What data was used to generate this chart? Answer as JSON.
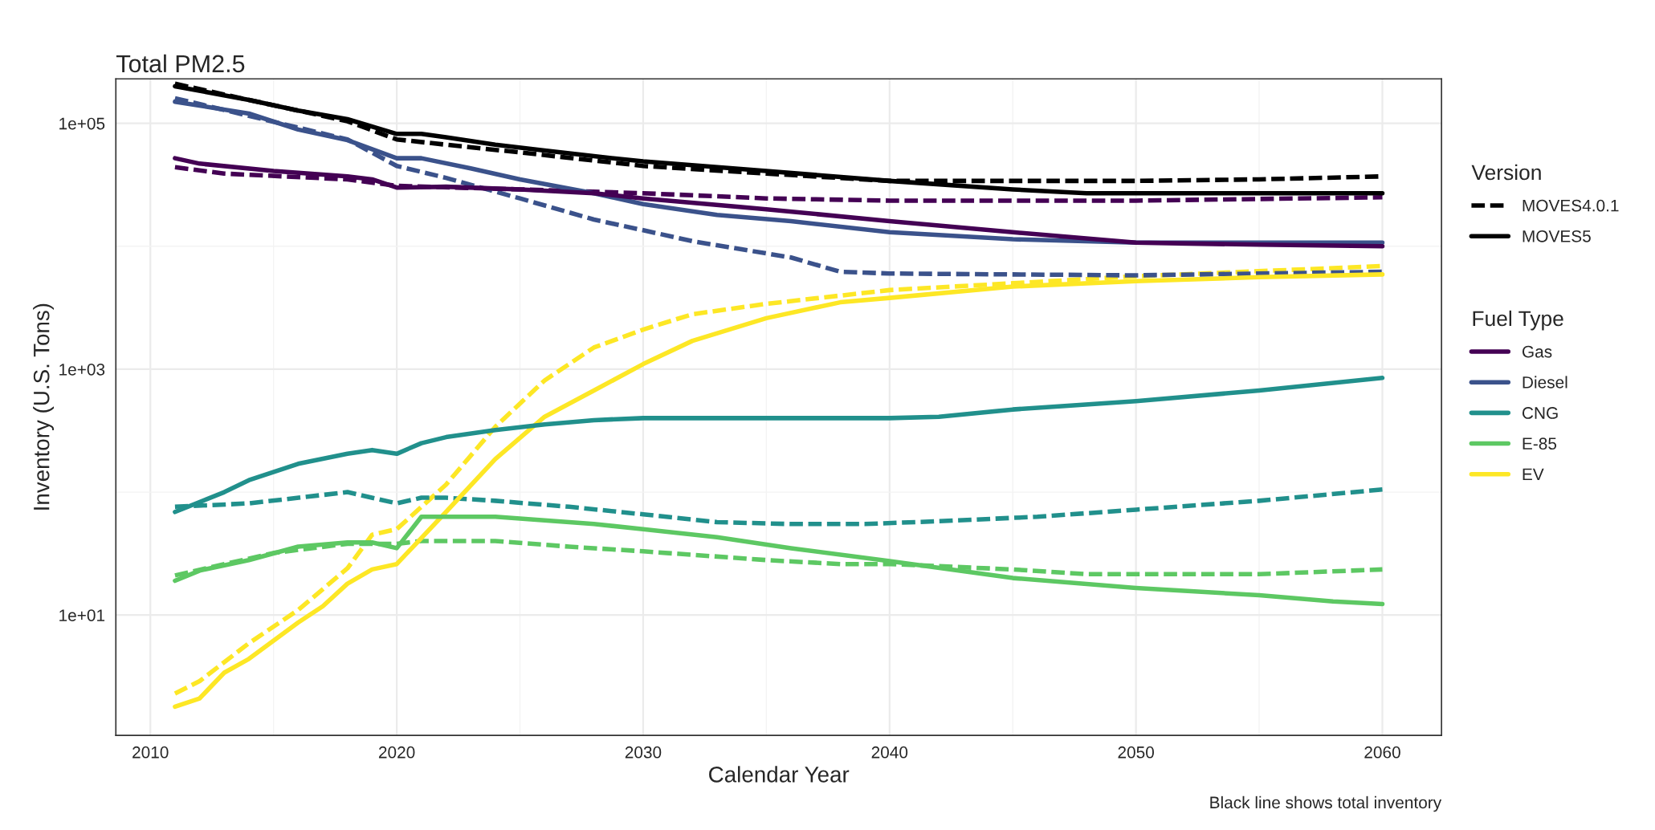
{
  "chart_data": {
    "type": "line",
    "title": "Total PM2.5",
    "xlabel": "Calendar Year",
    "ylabel": "Inventory (U.S. Tons)",
    "legend_title": [
      "Version",
      "Fuel Type"
    ],
    "log": "y",
    "grid": true,
    "legend": "right",
    "xlim": [
      2008.6,
      2062.4
    ],
    "ylim": [
      1.05,
      230000
    ],
    "xticks": [
      2010,
      2020,
      2030,
      2040,
      2050,
      2060
    ],
    "yticks": [
      {
        "value": 10,
        "label": "1e+01"
      },
      {
        "value": 1000,
        "label": "1e+03"
      },
      {
        "value": 100000,
        "label": "1e+05"
      }
    ],
    "annotations": [
      "Black line shows total inventory"
    ],
    "series": [
      {
        "name": "MOVES4.0.1",
        "color": "#000000",
        "line_style": "dashed",
        "x": [
          2011,
          2014,
          2018,
          2020,
          2022,
          2025,
          2030,
          2035,
          2040,
          2045,
          2050,
          2055,
          2060
        ],
        "values": [
          210000,
          155000,
          104000,
          74000,
          67000,
          58000,
          45000,
          39000,
          34000,
          34000,
          34000,
          35000,
          37000
        ]
      },
      {
        "name": "MOVES5",
        "color": "#000000",
        "line_style": "solid",
        "x": [
          2011,
          2014,
          2016,
          2018,
          2020,
          2021,
          2022,
          2024,
          2026,
          2028,
          2030,
          2035,
          2040,
          2045,
          2048,
          2060
        ],
        "values": [
          200000,
          155000,
          127000,
          108000,
          82000,
          82000,
          77000,
          67000,
          60000,
          54000,
          49000,
          41000,
          34000,
          29000,
          27000,
          27000
        ]
      },
      {
        "name": "Gas",
        "color": "#440154",
        "line_style": "solid",
        "x": [
          2011,
          2012,
          2015,
          2018,
          2019,
          2020,
          2022,
          2025,
          2028,
          2030,
          2035,
          2040,
          2045,
          2050,
          2055,
          2060
        ],
        "values": [
          52000,
          47000,
          41000,
          37000,
          35000,
          30000,
          30500,
          29000,
          27000,
          24500,
          20000,
          16000,
          13000,
          10700,
          10300,
          10000
        ]
      },
      {
        "name": "Diesel",
        "color": "#3b528b",
        "line_style": "solid",
        "x": [
          2011,
          2014,
          2016,
          2018,
          2020,
          2021,
          2023,
          2025,
          2028,
          2030,
          2033,
          2036,
          2040,
          2045,
          2050,
          2060
        ],
        "values": [
          150000,
          120000,
          89000,
          73000,
          52000,
          52000,
          43000,
          35000,
          27000,
          22000,
          18000,
          16000,
          13000,
          11400,
          10700,
          10700
        ]
      },
      {
        "name": "CNG",
        "color": "#21908c",
        "line_style": "solid",
        "x": [
          2011,
          2013,
          2014,
          2016,
          2018,
          2019,
          2020,
          2021,
          2022,
          2024,
          2026,
          2028,
          2030,
          2035,
          2040,
          2042,
          2045,
          2050,
          2055,
          2060
        ],
        "values": [
          69,
          100,
          125,
          170,
          205,
          220,
          205,
          250,
          280,
          320,
          355,
          385,
          400,
          400,
          400,
          410,
          470,
          550,
          670,
          850
        ]
      },
      {
        "name": "E-85",
        "color": "#5dc863",
        "line_style": "solid",
        "x": [
          2011,
          2012,
          2014,
          2016,
          2018,
          2019,
          2020,
          2021,
          2024,
          2028,
          2030,
          2033,
          2036,
          2040,
          2045,
          2050,
          2055,
          2058,
          2060
        ],
        "values": [
          19,
          23,
          28,
          36,
          39,
          39,
          35,
          63,
          63,
          55,
          50,
          43,
          35,
          27.5,
          20,
          16.6,
          14.5,
          12.9,
          12.3
        ]
      },
      {
        "name": "EV",
        "color": "#fde725",
        "line_style": "solid",
        "x": [
          2011,
          2012,
          2013,
          2014,
          2016,
          2017,
          2018,
          2019,
          2020,
          2022,
          2024,
          2026,
          2028,
          2030,
          2032,
          2035,
          2038,
          2040,
          2045,
          2050,
          2055,
          2060
        ],
        "values": [
          1.8,
          2.1,
          3.4,
          4.4,
          8.7,
          11.8,
          18,
          23.5,
          26,
          69,
          186,
          410,
          670,
          1100,
          1700,
          2600,
          3500,
          3800,
          4700,
          5200,
          5600,
          5900
        ]
      },
      {
        "color": "#440154",
        "line_style": "dashed",
        "x": [
          2011,
          2013,
          2018,
          2020,
          2025,
          2030,
          2035,
          2040,
          2050,
          2060
        ],
        "values": [
          44000,
          39000,
          35000,
          31000,
          29000,
          27000,
          24500,
          23500,
          23500,
          25000
        ]
      },
      {
        "color": "#3b528b",
        "line_style": "dashed",
        "x": [
          2011,
          2018,
          2020,
          2022,
          2025,
          2028,
          2030,
          2032,
          2036,
          2038,
          2040,
          2050,
          2060
        ],
        "values": [
          160000,
          74000,
          45000,
          36000,
          24500,
          16500,
          13500,
          11000,
          8100,
          6200,
          6000,
          5800,
          6200
        ]
      },
      {
        "color": "#21908c",
        "line_style": "dashed",
        "x": [
          2011,
          2014,
          2018,
          2020,
          2021,
          2022,
          2024,
          2027,
          2030,
          2033,
          2036,
          2039,
          2042,
          2046,
          2050,
          2055,
          2060
        ],
        "values": [
          76,
          81,
          100,
          81,
          90,
          90,
          85,
          76,
          66,
          57,
          55,
          55,
          58,
          63,
          72,
          85,
          105
        ]
      },
      {
        "color": "#5dc863",
        "line_style": "dashed",
        "x": [
          2011,
          2015,
          2018,
          2020,
          2021,
          2024,
          2027,
          2030,
          2035,
          2038,
          2040,
          2045,
          2048,
          2055,
          2060
        ],
        "values": [
          21,
          32,
          38,
          38,
          40,
          40,
          36,
          33,
          28,
          26,
          26,
          23.5,
          21.5,
          21.5,
          23.5
        ]
      },
      {
        "color": "#fde725",
        "line_style": "dashed",
        "x": [
          2011,
          2012,
          2014,
          2016,
          2018,
          2019,
          2020,
          2022,
          2024,
          2026,
          2028,
          2030,
          2032,
          2035,
          2040,
          2045,
          2050,
          2060
        ],
        "values": [
          2.3,
          2.9,
          5.9,
          11,
          24,
          45,
          50,
          115,
          340,
          810,
          1500,
          2100,
          2800,
          3400,
          4400,
          5000,
          5700,
          6900
        ]
      }
    ]
  }
}
